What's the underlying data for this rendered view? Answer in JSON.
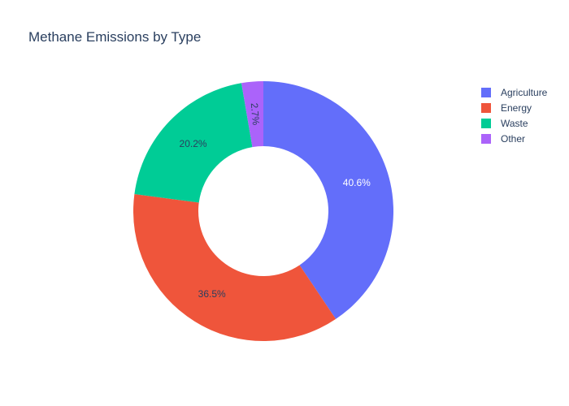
{
  "chart_data": {
    "type": "pie",
    "title": "Methane Emissions by Type",
    "hole": true,
    "legend_position": "top-right",
    "categories": [
      "Agriculture",
      "Energy",
      "Waste",
      "Other"
    ],
    "values": [
      40.6,
      36.5,
      20.2,
      2.7
    ],
    "labels": [
      "40.6%",
      "36.5%",
      "20.2%",
      "2.7%"
    ],
    "colors": [
      "#636efa",
      "#ef553b",
      "#00cc96",
      "#ab63fa"
    ],
    "label_colors": [
      "#ffffff",
      "#2a3f5f",
      "#2a3f5f",
      "#2a3f5f"
    ]
  }
}
